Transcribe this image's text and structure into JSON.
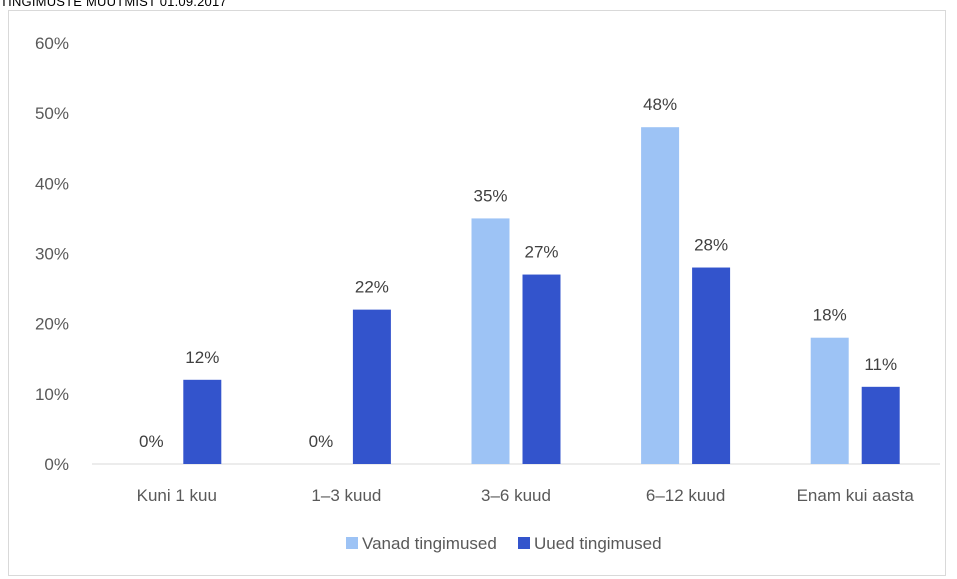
{
  "chart_data": {
    "type": "bar",
    "title": "TINGIMUSTE MUUTMIST 01.09.2017",
    "categories": [
      "Kuni 1 kuu",
      "1–3 kuud",
      "3–6 kuud",
      "6–12 kuud",
      "Enam kui aasta"
    ],
    "series": [
      {
        "name": "Vanad tingimused",
        "color": "#9dc3f5",
        "values": [
          0,
          0,
          35,
          48,
          18
        ],
        "labels": [
          "0%",
          "0%",
          "35%",
          "48%",
          "18%"
        ]
      },
      {
        "name": "Uued tingimused",
        "color": "#3354cc",
        "values": [
          12,
          22,
          27,
          28,
          11
        ],
        "labels": [
          "12%",
          "22%",
          "27%",
          "28%",
          "11%"
        ]
      }
    ],
    "ylim": [
      0,
      60
    ],
    "yticks": [
      "0%",
      "10%",
      "20%",
      "30%",
      "40%",
      "50%",
      "60%"
    ],
    "grid": false,
    "legend_position": "bottom"
  }
}
